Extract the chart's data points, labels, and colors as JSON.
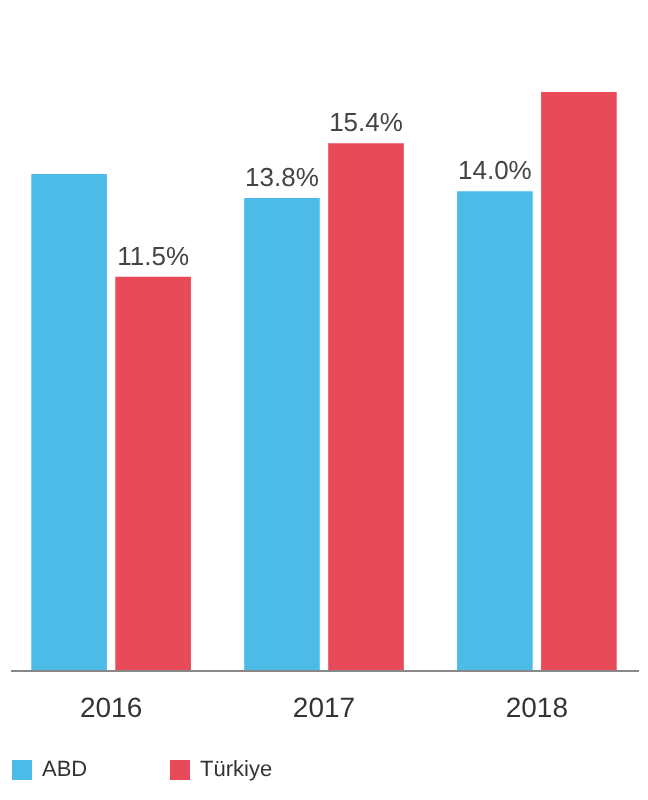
{
  "chart_data": {
    "type": "bar",
    "categories": [
      "2016",
      "2017",
      "2018"
    ],
    "series": [
      {
        "name": "ABD",
        "color": "#4dbbe8",
        "values": [
          14.5,
          13.8,
          14.0
        ],
        "value_labels": [
          null,
          "13.8%",
          "14.0%"
        ]
      },
      {
        "name": "Türkiye",
        "color": "#e84a5a",
        "values": [
          11.5,
          15.4,
          16.9
        ],
        "value_labels": [
          "11.5%",
          "15.4%",
          null
        ]
      }
    ],
    "legend": "bottom",
    "grid": false
  }
}
